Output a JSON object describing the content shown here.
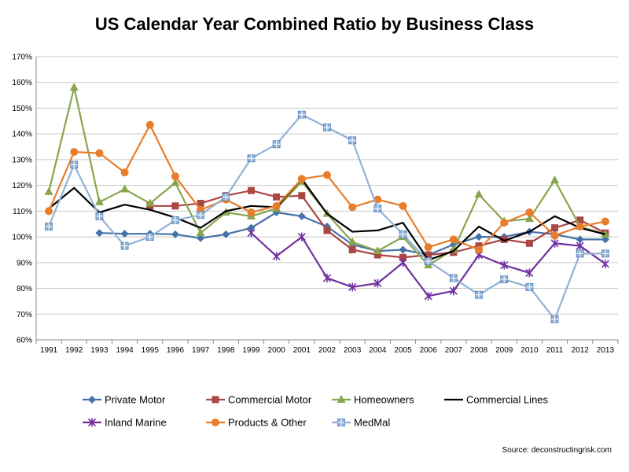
{
  "chart_data": {
    "type": "line",
    "title": "US Calendar Year Combined Ratio by Business Class",
    "xlabel": "",
    "ylabel": "",
    "ylim": [
      60,
      170
    ],
    "y_ticks": [
      60,
      70,
      80,
      90,
      100,
      110,
      120,
      130,
      140,
      150,
      160,
      170
    ],
    "y_tick_labels": [
      "60%",
      "70%",
      "80%",
      "90%",
      "100%",
      "110%",
      "120%",
      "130%",
      "140%",
      "150%",
      "160%",
      "170%"
    ],
    "x": [
      "1991",
      "1992",
      "1993",
      "1994",
      "1995",
      "1996",
      "1997",
      "1998",
      "1999",
      "2000",
      "2001",
      "2002",
      "2003",
      "2004",
      "2005",
      "2006",
      "2007",
      "2008",
      "2009",
      "2010",
      "2011",
      "2012",
      "2013"
    ],
    "grid": "horizontal",
    "legend_position": "bottom",
    "series": [
      {
        "name": "Private Motor",
        "color": "#4572A7",
        "marker": "diamond",
        "values": [
          null,
          null,
          101.5,
          101.2,
          101.2,
          101,
          99.5,
          101,
          103.5,
          109.5,
          108,
          104,
          97,
          94.5,
          95,
          93,
          97,
          100,
          100,
          102,
          101,
          99,
          99
        ]
      },
      {
        "name": "Commercial Motor",
        "color": "#AA4643",
        "marker": "square",
        "values": [
          null,
          null,
          null,
          null,
          112,
          112,
          113,
          116,
          118,
          115.5,
          116,
          102.5,
          95,
          93,
          92,
          93,
          94,
          96.5,
          99,
          97.5,
          103.5,
          106.5,
          101.5
        ]
      },
      {
        "name": "Homeowners",
        "color": "#89A54E",
        "marker": "triangle",
        "values": [
          117.5,
          158,
          113.5,
          118.5,
          113,
          121,
          101.5,
          109.5,
          108,
          111,
          121.5,
          109,
          98,
          94.5,
          100,
          89,
          95,
          116.5,
          106,
          107,
          122,
          104,
          101
        ]
      },
      {
        "name": "Commercial Lines",
        "color": "#000000",
        "marker": "none",
        "values": [
          111,
          119,
          109.5,
          112.5,
          110.5,
          107.5,
          103.5,
          110,
          112,
          111.5,
          122.5,
          109,
          102,
          102.5,
          105.5,
          91,
          94.5,
          104,
          98.5,
          102,
          108,
          103.5,
          101
        ]
      },
      {
        "name": "Inland Marine",
        "color": "#7030A0",
        "marker": "star",
        "values": [
          null,
          null,
          null,
          null,
          null,
          null,
          null,
          null,
          101.5,
          92.5,
          100,
          84,
          80.5,
          82,
          90,
          77,
          79,
          93,
          89,
          86,
          97.5,
          96.5,
          89.5
        ]
      },
      {
        "name": "Products & Other",
        "color": "#E87D2B",
        "marker": "circle",
        "values": [
          110,
          133,
          132.5,
          125,
          143.5,
          123.5,
          110.5,
          114.5,
          109.5,
          112,
          122.5,
          124,
          111.5,
          114.5,
          112,
          96,
          99,
          95,
          105.5,
          109.5,
          100.5,
          104,
          106
        ]
      },
      {
        "name": "MedMal",
        "color": "#93B1D6",
        "marker": "boxplus",
        "values": [
          104,
          128,
          108,
          96.5,
          100,
          106.5,
          108.5,
          115.5,
          130.5,
          136,
          147.5,
          142.5,
          137.5,
          111,
          101,
          90.5,
          84,
          77.5,
          83.5,
          80.5,
          68,
          93.5,
          93.5
        ]
      }
    ],
    "legend_rows": [
      [
        "Private Motor",
        "Commercial Motor",
        "Homeowners",
        "Commercial Lines"
      ],
      [
        "Inland Marine",
        "Products & Other",
        "MedMal"
      ]
    ],
    "source": "Source: deconstructingrisk.com"
  }
}
